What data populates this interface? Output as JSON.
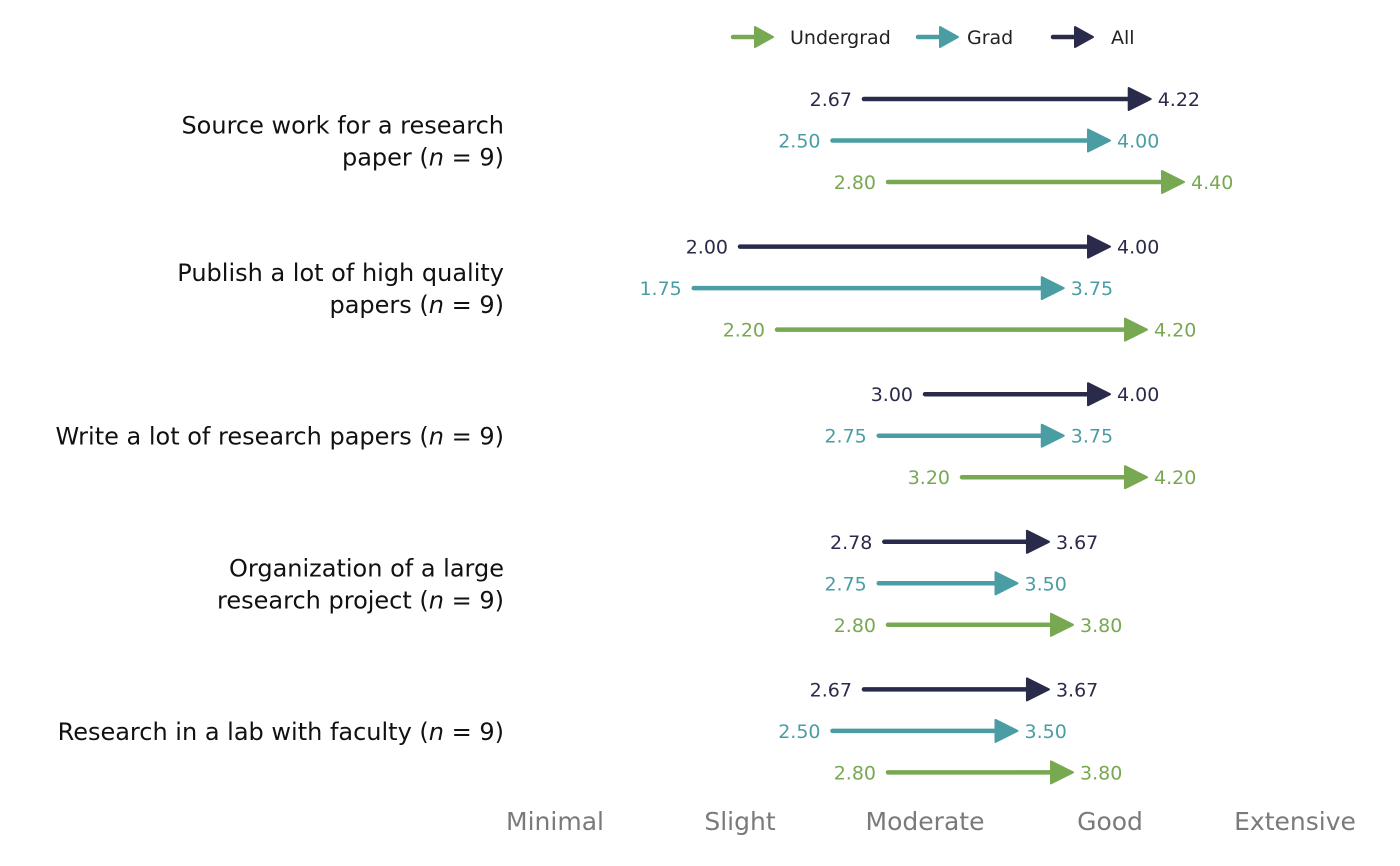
{
  "chart_data": {
    "type": "arrow-dumbbell",
    "title": "",
    "xlabel": "",
    "ylabel": "",
    "xlim": [
      1,
      5
    ],
    "x_ticks": [
      {
        "value": 1,
        "label": "Minimal"
      },
      {
        "value": 2,
        "label": "Slight"
      },
      {
        "value": 3,
        "label": "Moderate"
      },
      {
        "value": 4,
        "label": "Good"
      },
      {
        "value": 5,
        "label": "Extensive"
      }
    ],
    "legend": {
      "placement": "top",
      "entries": [
        {
          "name": "Undergrad",
          "color": "#78a851"
        },
        {
          "name": "Grad",
          "color": "#4a9ea3"
        },
        {
          "name": "All",
          "color": "#2a2b4a"
        }
      ]
    },
    "categories": [
      {
        "label_lines": [
          "Source work for a research",
          "paper (n = 9)"
        ],
        "series": [
          {
            "name": "All",
            "start": 2.67,
            "end": 4.22,
            "start_label": "2.67",
            "end_label": "4.22"
          },
          {
            "name": "Grad",
            "start": 2.5,
            "end": 4.0,
            "start_label": "2.50",
            "end_label": "4.00"
          },
          {
            "name": "Undergrad",
            "start": 2.8,
            "end": 4.4,
            "start_label": "2.80",
            "end_label": "4.40"
          }
        ]
      },
      {
        "label_lines": [
          "Publish a lot of high quality",
          "papers (n = 9)"
        ],
        "series": [
          {
            "name": "All",
            "start": 2.0,
            "end": 4.0,
            "start_label": "2.00",
            "end_label": "4.00"
          },
          {
            "name": "Grad",
            "start": 1.75,
            "end": 3.75,
            "start_label": "1.75",
            "end_label": "3.75"
          },
          {
            "name": "Undergrad",
            "start": 2.2,
            "end": 4.2,
            "start_label": "2.20",
            "end_label": "4.20"
          }
        ]
      },
      {
        "label_lines": [
          "Write a lot of research papers (n = 9)"
        ],
        "series": [
          {
            "name": "All",
            "start": 3.0,
            "end": 4.0,
            "start_label": "3.00",
            "end_label": "4.00"
          },
          {
            "name": "Grad",
            "start": 2.75,
            "end": 3.75,
            "start_label": "2.75",
            "end_label": "3.75"
          },
          {
            "name": "Undergrad",
            "start": 3.2,
            "end": 4.2,
            "start_label": "3.20",
            "end_label": "4.20"
          }
        ]
      },
      {
        "label_lines": [
          "Organization of a large",
          "research project (n = 9)"
        ],
        "series": [
          {
            "name": "All",
            "start": 2.78,
            "end": 3.67,
            "start_label": "2.78",
            "end_label": "3.67"
          },
          {
            "name": "Grad",
            "start": 2.75,
            "end": 3.5,
            "start_label": "2.75",
            "end_label": "3.50"
          },
          {
            "name": "Undergrad",
            "start": 2.8,
            "end": 3.8,
            "start_label": "2.80",
            "end_label": "3.80"
          }
        ]
      },
      {
        "label_lines": [
          "Research in a lab with faculty (n = 9)"
        ],
        "series": [
          {
            "name": "All",
            "start": 2.67,
            "end": 3.67,
            "start_label": "2.67",
            "end_label": "3.67"
          },
          {
            "name": "Grad",
            "start": 2.5,
            "end": 3.5,
            "start_label": "2.50",
            "end_label": "3.50"
          },
          {
            "name": "Undergrad",
            "start": 2.8,
            "end": 3.8,
            "start_label": "2.80",
            "end_label": "3.80"
          }
        ]
      }
    ]
  }
}
